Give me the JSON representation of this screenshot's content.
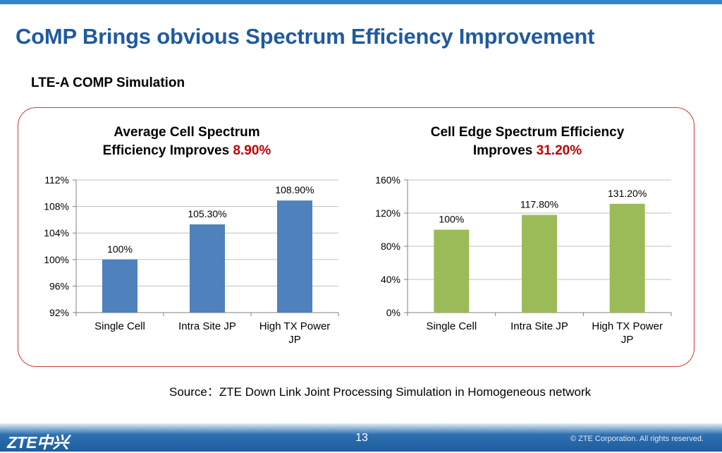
{
  "slide": {
    "title": "CoMP Brings obvious Spectrum Efficiency Improvement",
    "subtitle": "LTE-A COMP Simulation",
    "source": "Source：ZTE Down Link Joint Processing Simulation in Homogeneous network",
    "page_number": "13",
    "logo_text": "ZTE中兴",
    "copyright": "© ZTE Corporation. All rights reserved."
  },
  "chart_data": [
    {
      "type": "bar",
      "title_line1": "Average Cell Spectrum",
      "title_line2": "Efficiency Improves ",
      "title_highlight": "8.90%",
      "categories": [
        [
          "Single Cell"
        ],
        [
          "Intra Site JP"
        ],
        [
          "High TX Power",
          "JP"
        ]
      ],
      "values": [
        100,
        105.3,
        108.9
      ],
      "data_labels": [
        "100%",
        "105.30%",
        "108.90%"
      ],
      "yticks": [
        92,
        96,
        100,
        104,
        108,
        112
      ],
      "ytick_labels": [
        "92%",
        "96%",
        "100%",
        "104%",
        "108%",
        "112%"
      ],
      "ylim": [
        92,
        112
      ],
      "grid": true,
      "bar_color": "#4f81bd"
    },
    {
      "type": "bar",
      "title_line1": "Cell Edge Spectrum Efficiency",
      "title_line2": "Improves ",
      "title_highlight": "31.20%",
      "categories": [
        [
          "Single Cell"
        ],
        [
          "Intra Site JP"
        ],
        [
          "High TX Power",
          "JP"
        ]
      ],
      "values": [
        100,
        117.8,
        131.2
      ],
      "data_labels": [
        "100%",
        "117.80%",
        "131.20%"
      ],
      "yticks": [
        0,
        40,
        80,
        120,
        160
      ],
      "ytick_labels": [
        "0%",
        "40%",
        "80%",
        "120%",
        "160%"
      ],
      "ylim": [
        0,
        160
      ],
      "grid": true,
      "bar_color": "#9bbb59"
    }
  ]
}
